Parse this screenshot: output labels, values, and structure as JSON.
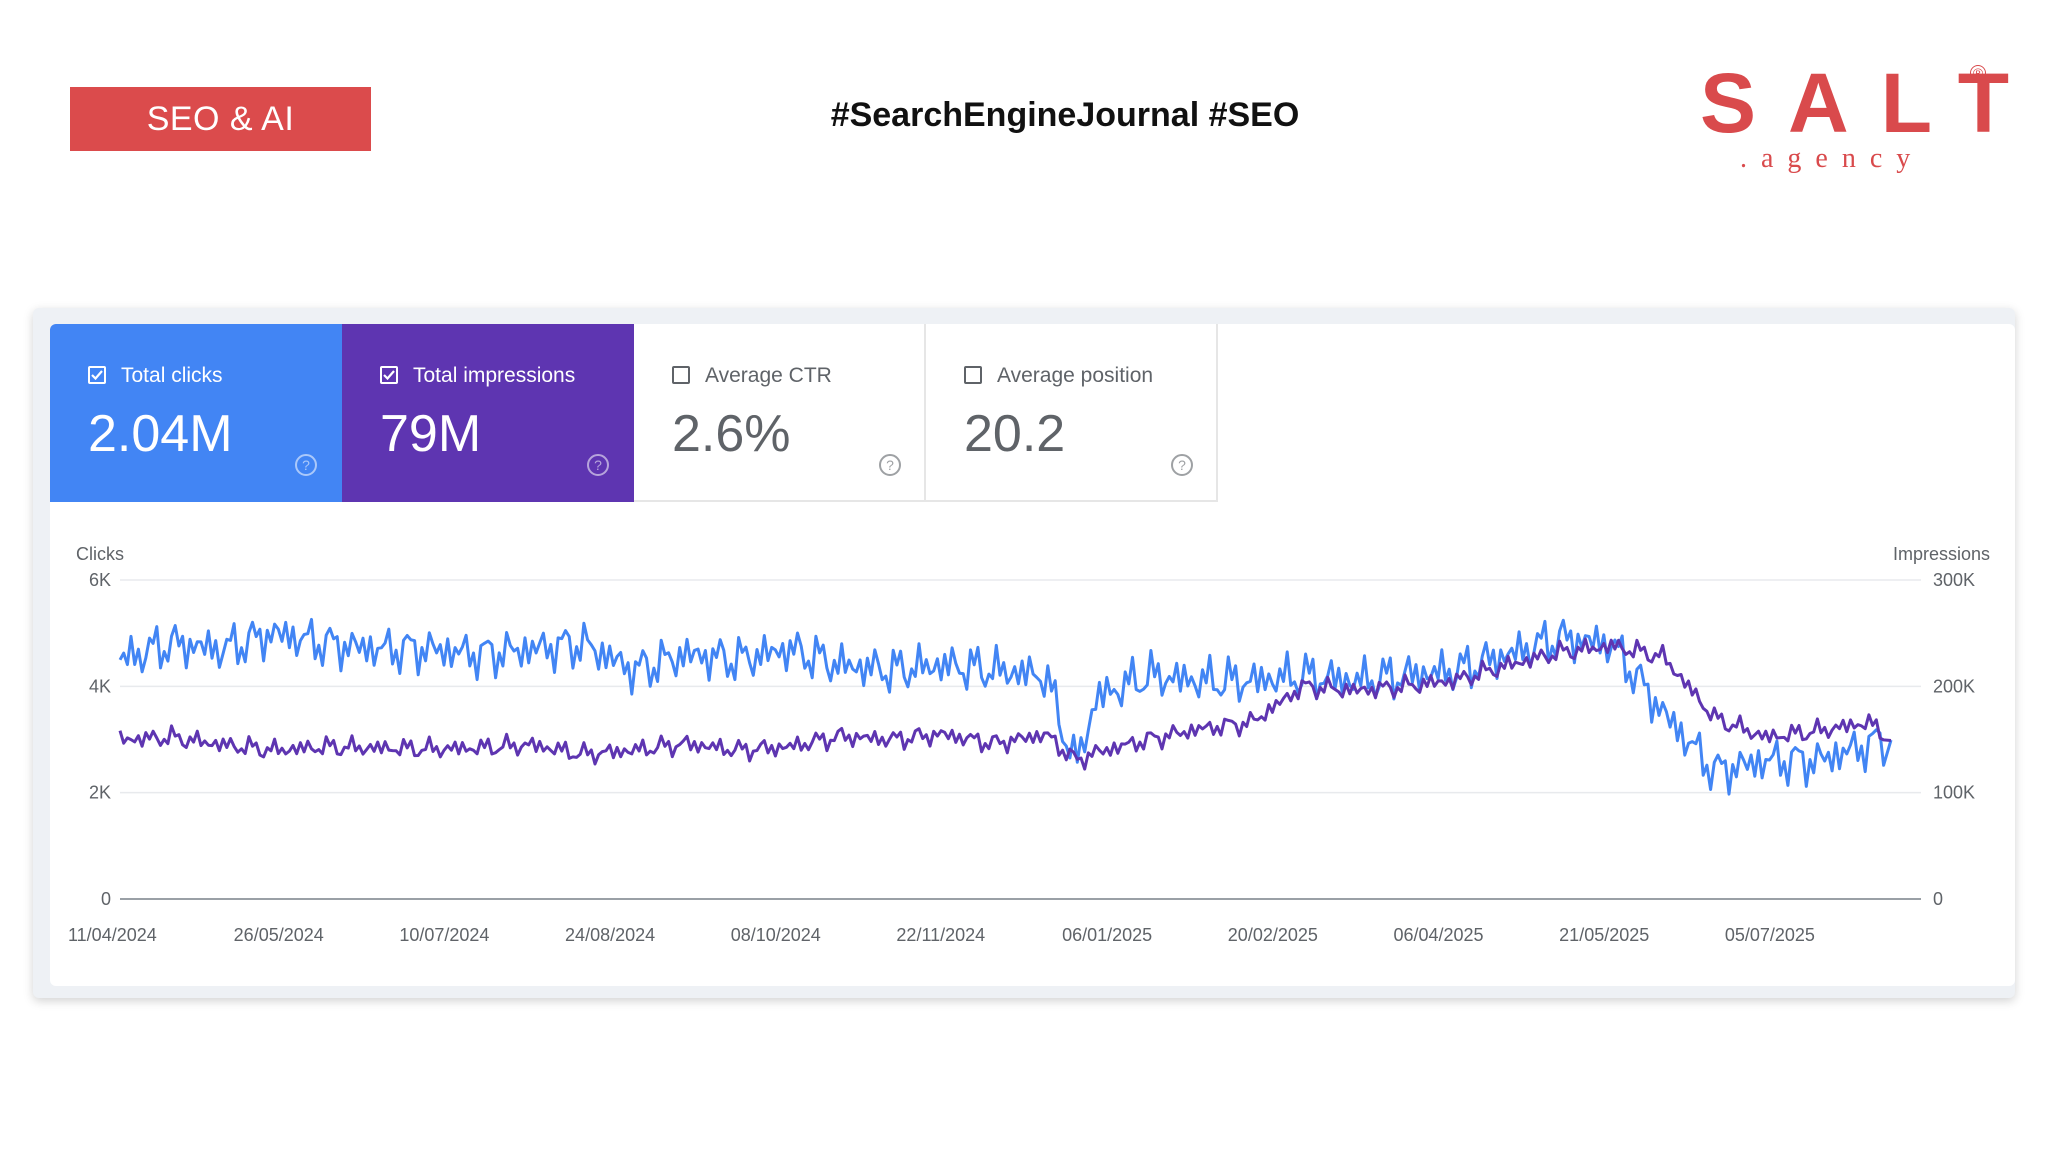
{
  "header": {
    "tag": "SEO & AI",
    "hashtags": "#SearchEngineJournal #SEO",
    "logo_word": "SALT",
    "logo_sub": ".agency",
    "logo_reg": "®"
  },
  "metrics": [
    {
      "label": "Total clicks",
      "value": "2.04M",
      "checked": true,
      "color": "#4285f4"
    },
    {
      "label": "Total impressions",
      "value": "79M",
      "checked": true,
      "color": "#5e35b1"
    },
    {
      "label": "Average CTR",
      "value": "2.6%",
      "checked": false
    },
    {
      "label": "Average position",
      "value": "20.2",
      "checked": false
    }
  ],
  "help_icon": "?",
  "chart_data": {
    "type": "line",
    "ylabel_left": "Clicks",
    "ylabel_right": "Impressions",
    "y_left_ticks": [
      "0",
      "2K",
      "4K",
      "6K"
    ],
    "y_right_ticks": [
      "0",
      "100K",
      "200K",
      "300K"
    ],
    "ylim_left": [
      0,
      6000
    ],
    "ylim_right": [
      0,
      300000
    ],
    "x_tick_labels": [
      "11/04/2024",
      "26/05/2024",
      "10/07/2024",
      "24/08/2024",
      "08/10/2024",
      "22/11/2024",
      "06/01/2025",
      "20/02/2025",
      "06/04/2025",
      "21/05/2025",
      "05/07/2025"
    ],
    "x_range": [
      "2024-04-11",
      "2025-08-05"
    ],
    "grid": true,
    "x": [
      "2024-04-11",
      "2024-04-25",
      "2024-05-09",
      "2024-05-23",
      "2024-06-06",
      "2024-06-20",
      "2024-07-04",
      "2024-07-18",
      "2024-08-01",
      "2024-08-15",
      "2024-08-29",
      "2024-09-12",
      "2024-09-26",
      "2024-10-10",
      "2024-10-24",
      "2024-11-07",
      "2024-11-21",
      "2024-12-05",
      "2024-12-19",
      "2024-12-27",
      "2025-01-02",
      "2025-01-16",
      "2025-01-30",
      "2025-02-13",
      "2025-02-27",
      "2025-03-13",
      "2025-03-27",
      "2025-04-10",
      "2025-04-24",
      "2025-05-08",
      "2025-05-22",
      "2025-06-05",
      "2025-06-19",
      "2025-07-03",
      "2025-07-17",
      "2025-07-31",
      "2025-08-05"
    ],
    "series": [
      {
        "name": "Clicks",
        "axis": "left",
        "color": "#4285f4",
        "values": [
          4500,
          4800,
          4700,
          5000,
          4800,
          4700,
          4700,
          4600,
          4700,
          4800,
          4300,
          4600,
          4500,
          4700,
          4400,
          4300,
          4400,
          4300,
          4200,
          2500,
          3800,
          4200,
          4100,
          4100,
          4200,
          4100,
          4200,
          4300,
          4600,
          4900,
          4800,
          3500,
          2400,
          2600,
          2600,
          2900,
          3000
        ]
      },
      {
        "name": "Impressions",
        "axis": "right",
        "color": "#5e35b1",
        "values": [
          150000,
          152000,
          145000,
          140000,
          143000,
          142000,
          141000,
          142000,
          145000,
          136000,
          140000,
          146000,
          140000,
          143000,
          153000,
          150000,
          155000,
          146000,
          155000,
          130000,
          138000,
          150000,
          160000,
          166000,
          200000,
          196000,
          200000,
          206000,
          220000,
          232000,
          238000,
          228000,
          170000,
          152000,
          158000,
          166000,
          152000
        ]
      }
    ]
  }
}
